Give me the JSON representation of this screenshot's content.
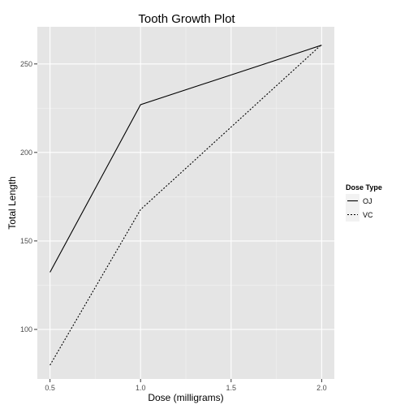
{
  "chart_data": {
    "type": "line",
    "title": "Tooth Growth Plot",
    "xlabel": "Dose (milligrams)",
    "ylabel": "Total Length",
    "xlim": [
      0.43,
      2.07
    ],
    "ylim": [
      72,
      271
    ],
    "x_ticks": [
      0.5,
      1.0,
      1.5,
      2.0
    ],
    "x_tick_labels": [
      "0.5",
      "1.0",
      "1.5",
      "2.0"
    ],
    "y_ticks": [
      100,
      150,
      200,
      250
    ],
    "y_tick_labels": [
      "100",
      "150",
      "200",
      "250"
    ],
    "grid": true,
    "legend": {
      "title": "Dose Type",
      "placement": "right"
    },
    "series": [
      {
        "name": "OJ",
        "linetype": "solid",
        "x": [
          0.5,
          1.0,
          2.0
        ],
        "y": [
          132.3,
          227.0,
          260.6
        ]
      },
      {
        "name": "VC",
        "linetype": "dotted",
        "x": [
          0.5,
          1.0,
          2.0
        ],
        "y": [
          79.8,
          167.7,
          261.0
        ]
      }
    ],
    "colors": {
      "panel": "#e5e5e5",
      "grid_major": "#ffffff",
      "grid_minor": "#f2f2f2",
      "line": "#000000",
      "key_bg": "#f2f2f2"
    }
  }
}
